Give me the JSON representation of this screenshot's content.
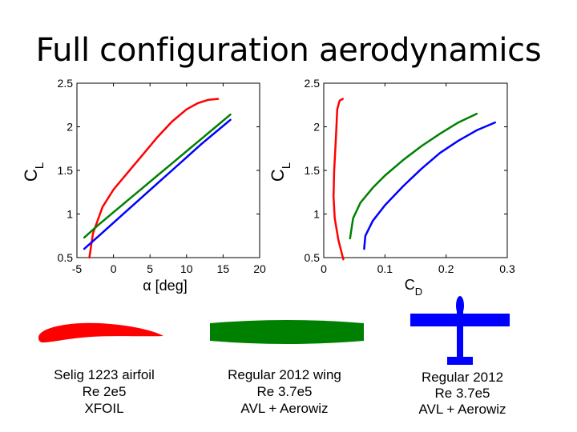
{
  "slide_title": "Full configuration aerodynamics",
  "chart_data": [
    {
      "type": "line",
      "xlabel": "α [deg]",
      "ylabel": "CL",
      "xlim": [
        -5,
        20
      ],
      "ylim": [
        0.5,
        2.5
      ],
      "xticks": [
        "-5",
        "0",
        "5",
        "10",
        "15",
        "20"
      ],
      "yticks": [
        "0.5",
        "1",
        "1.5",
        "2",
        "2.5"
      ],
      "grid": false,
      "series": [
        {
          "color": "#ff0000",
          "x": [
            -3.3,
            -2.8,
            -1.5,
            0,
            2,
            4,
            6,
            8,
            10,
            11.5,
            13,
            14.3
          ],
          "y": [
            0.5,
            0.78,
            1.08,
            1.28,
            1.48,
            1.68,
            1.88,
            2.06,
            2.2,
            2.27,
            2.31,
            2.32
          ]
        },
        {
          "color": "#008000",
          "x": [
            -4,
            -2,
            0,
            2,
            4,
            6,
            8,
            10,
            12,
            14,
            16
          ],
          "y": [
            0.73,
            0.88,
            1.02,
            1.16,
            1.3,
            1.44,
            1.58,
            1.72,
            1.86,
            2.0,
            2.14
          ]
        },
        {
          "color": "#0000ff",
          "x": [
            -4,
            -2,
            0,
            2,
            4,
            6,
            8,
            10,
            12,
            14,
            16
          ],
          "y": [
            0.6,
            0.75,
            0.9,
            1.05,
            1.2,
            1.35,
            1.5,
            1.65,
            1.8,
            1.94,
            2.08
          ]
        }
      ]
    },
    {
      "type": "line",
      "xlabel": "CD",
      "ylabel": "CL",
      "xlim": [
        0,
        0.3
      ],
      "ylim": [
        0.5,
        2.5
      ],
      "xticks": [
        "0",
        "0.1",
        "0.2",
        "0.3"
      ],
      "yticks": [
        "0.5",
        "1",
        "1.5",
        "2",
        "2.5"
      ],
      "grid": false,
      "series": [
        {
          "color": "#ff0000",
          "x": [
            0.032,
            0.024,
            0.018,
            0.016,
            0.017,
            0.02,
            0.022,
            0.026,
            0.031
          ],
          "y": [
            0.48,
            0.7,
            0.95,
            1.2,
            1.5,
            1.9,
            2.2,
            2.3,
            2.32
          ]
        },
        {
          "color": "#008000",
          "x": [
            0.043,
            0.048,
            0.06,
            0.08,
            0.1,
            0.13,
            0.16,
            0.19,
            0.22,
            0.25
          ],
          "y": [
            0.72,
            0.95,
            1.13,
            1.3,
            1.44,
            1.62,
            1.78,
            1.92,
            2.05,
            2.15
          ]
        },
        {
          "color": "#0000ff",
          "x": [
            0.066,
            0.068,
            0.08,
            0.1,
            0.13,
            0.16,
            0.19,
            0.22,
            0.25,
            0.28
          ],
          "y": [
            0.6,
            0.75,
            0.92,
            1.1,
            1.32,
            1.52,
            1.7,
            1.84,
            1.96,
            2.05
          ]
        }
      ]
    }
  ],
  "icons": {
    "airfoil": {
      "name": "airfoil-icon",
      "color": "#ff0000"
    },
    "wing": {
      "name": "wing-icon",
      "color": "#008000"
    },
    "aircraft": {
      "name": "airplane-icon",
      "color": "#0000ff"
    }
  },
  "captions": {
    "airfoil": [
      "Selig 1223 airfoil",
      "Re 2e5",
      "XFOIL"
    ],
    "wing": [
      "Regular 2012 wing",
      "Re 3.7e5",
      "AVL + Aerowiz"
    ],
    "aircraft": [
      "Regular 2012",
      "Re 3.7e5",
      "AVL + Aerowiz"
    ]
  }
}
